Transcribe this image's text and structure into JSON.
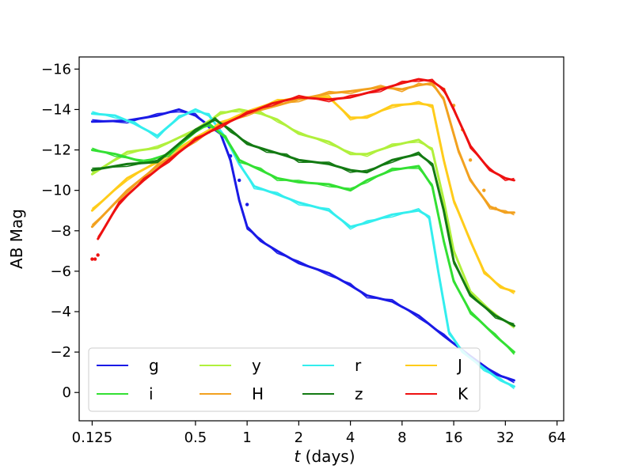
{
  "chart_data": {
    "type": "line",
    "title": "",
    "xlabel_italic": "t",
    "xlabel_rest": " (days)",
    "ylabel": "AB Mag",
    "xscale": "log2",
    "xlim": [
      0.105,
      70
    ],
    "ylim": [
      1.4,
      -16.6
    ],
    "yticks": [
      -16,
      -14,
      -12,
      -10,
      -8,
      -6,
      -4,
      -2,
      0
    ],
    "ytick_labels": [
      "−16",
      "−14",
      "−12",
      "−10",
      "−8",
      "−6",
      "−4",
      "−2",
      "0"
    ],
    "xticks": [
      0.125,
      0.5,
      1,
      2,
      4,
      8,
      16,
      32,
      64
    ],
    "xtick_labels": [
      "0.125",
      "0.5",
      "1",
      "2",
      "4",
      "8",
      "16",
      "32",
      "64"
    ],
    "legend_position": "lower-left",
    "series": [
      {
        "name": "g",
        "color": "#1a1ae6",
        "t": [
          0.125,
          0.2,
          0.3,
          0.4,
          0.5,
          0.6,
          0.7,
          0.8,
          0.9,
          1.0,
          1.2,
          1.5,
          2,
          3,
          4,
          5,
          7,
          10,
          14,
          20,
          28,
          36
        ],
        "mag": [
          -13.4,
          -13.45,
          -13.7,
          -14.0,
          -13.7,
          -13.2,
          -12.8,
          -11.5,
          -9.5,
          -8.2,
          -7.5,
          -7.0,
          -6.4,
          -5.9,
          -5.3,
          -4.8,
          -4.5,
          -3.8,
          -2.8,
          -1.8,
          -0.9,
          -0.6
        ],
        "dots": [
          [
            0.6,
            -12.9
          ],
          [
            0.8,
            -11.7
          ],
          [
            0.9,
            -10.5
          ],
          [
            1.0,
            -9.3
          ]
        ]
      },
      {
        "name": "y",
        "color": "#b0f03c",
        "t": [
          0.125,
          0.2,
          0.3,
          0.5,
          0.7,
          0.9,
          1.2,
          1.5,
          2,
          3,
          4,
          5,
          7,
          10,
          12,
          14,
          16,
          20,
          28,
          36
        ],
        "mag": [
          -10.8,
          -11.9,
          -12.1,
          -13.0,
          -13.8,
          -14.0,
          -13.8,
          -13.5,
          -12.8,
          -12.4,
          -11.8,
          -11.8,
          -12.2,
          -12.5,
          -12.0,
          -9.5,
          -7.0,
          -5.0,
          -3.8,
          -3.3
        ]
      },
      {
        "name": "r",
        "color": "#33eeee",
        "t": [
          0.125,
          0.17,
          0.22,
          0.3,
          0.4,
          0.5,
          0.6,
          0.75,
          0.9,
          1.1,
          1.5,
          2,
          3,
          4,
          5,
          7,
          10,
          11.5,
          13,
          15,
          18,
          24,
          30,
          36
        ],
        "mag": [
          -13.8,
          -13.7,
          -13.3,
          -12.7,
          -13.6,
          -14.0,
          -13.7,
          -12.6,
          -11.3,
          -10.2,
          -9.8,
          -9.4,
          -9.0,
          -8.2,
          -8.4,
          -8.8,
          -9.0,
          -8.7,
          -6.0,
          -3.0,
          -2.0,
          -1.2,
          -0.6,
          -0.3
        ]
      },
      {
        "name": "J",
        "color": "#ffcc1a",
        "t": [
          0.125,
          0.2,
          0.3,
          0.5,
          0.7,
          1.0,
          1.5,
          2,
          3,
          4,
          5,
          7,
          10,
          12,
          14,
          16,
          20,
          24,
          30,
          36
        ],
        "mag": [
          -9.0,
          -10.6,
          -11.4,
          -12.6,
          -13.3,
          -13.9,
          -14.4,
          -14.6,
          -14.6,
          -13.6,
          -13.6,
          -14.2,
          -14.3,
          -14.2,
          -11.5,
          -9.5,
          -7.5,
          -6.0,
          -5.2,
          -5.0
        ]
      },
      {
        "name": "i",
        "color": "#33e033",
        "t": [
          0.125,
          0.17,
          0.25,
          0.35,
          0.5,
          0.6,
          0.75,
          0.9,
          1.2,
          1.5,
          2,
          3,
          4,
          5,
          7,
          10,
          12,
          14,
          16,
          20,
          28,
          36
        ],
        "mag": [
          -12.0,
          -11.8,
          -11.4,
          -11.8,
          -12.9,
          -13.3,
          -12.6,
          -11.5,
          -11.0,
          -10.6,
          -10.4,
          -10.3,
          -10.0,
          -10.5,
          -11.0,
          -11.2,
          -10.2,
          -7.5,
          -5.5,
          -4.0,
          -2.8,
          -2.0
        ]
      },
      {
        "name": "H",
        "color": "#f2a11f",
        "t": [
          0.125,
          0.2,
          0.3,
          0.5,
          0.7,
          1.0,
          1.5,
          2,
          3,
          4,
          6,
          8,
          10,
          12,
          14,
          17,
          20,
          26,
          32,
          36
        ],
        "mag": [
          -8.2,
          -10.0,
          -11.2,
          -12.5,
          -13.2,
          -13.8,
          -14.2,
          -14.5,
          -14.8,
          -14.9,
          -15.1,
          -15.0,
          -15.2,
          -15.3,
          -14.5,
          -12.0,
          -10.5,
          -9.2,
          -8.9,
          -8.9
        ],
        "dots": [
          [
            14,
            -15.0
          ],
          [
            16,
            -14.2
          ],
          [
            18,
            -13.0
          ],
          [
            20,
            -11.5
          ],
          [
            24,
            -10.0
          ],
          [
            28,
            -9.1
          ]
        ]
      },
      {
        "name": "z",
        "color": "#137a13",
        "t": [
          0.125,
          0.2,
          0.3,
          0.5,
          0.65,
          0.8,
          1.0,
          1.3,
          1.7,
          2,
          3,
          4,
          5,
          7,
          10,
          12,
          14,
          16,
          20,
          28,
          36
        ],
        "mag": [
          -11.0,
          -11.3,
          -11.4,
          -13.0,
          -13.5,
          -13.0,
          -12.3,
          -12.0,
          -11.7,
          -11.5,
          -11.3,
          -11.0,
          -10.9,
          -11.5,
          -11.8,
          -11.3,
          -9.0,
          -6.5,
          -4.8,
          -3.8,
          -3.3
        ]
      },
      {
        "name": "K",
        "color": "#ee1111",
        "t": [
          0.135,
          0.18,
          0.25,
          0.35,
          0.5,
          0.7,
          1.0,
          1.4,
          2,
          3,
          4,
          6,
          8,
          10,
          12,
          14,
          16,
          20,
          26,
          32,
          36
        ],
        "mag": [
          -7.6,
          -9.4,
          -10.5,
          -11.5,
          -12.5,
          -13.2,
          -13.8,
          -14.3,
          -14.6,
          -14.5,
          -14.6,
          -15.0,
          -15.3,
          -15.5,
          -15.4,
          -15.0,
          -14.0,
          -12.2,
          -11.0,
          -10.6,
          -10.5
        ],
        "dots": [
          [
            0.125,
            -6.6
          ],
          [
            0.13,
            -6.6
          ],
          [
            0.135,
            -6.8
          ]
        ]
      }
    ]
  }
}
